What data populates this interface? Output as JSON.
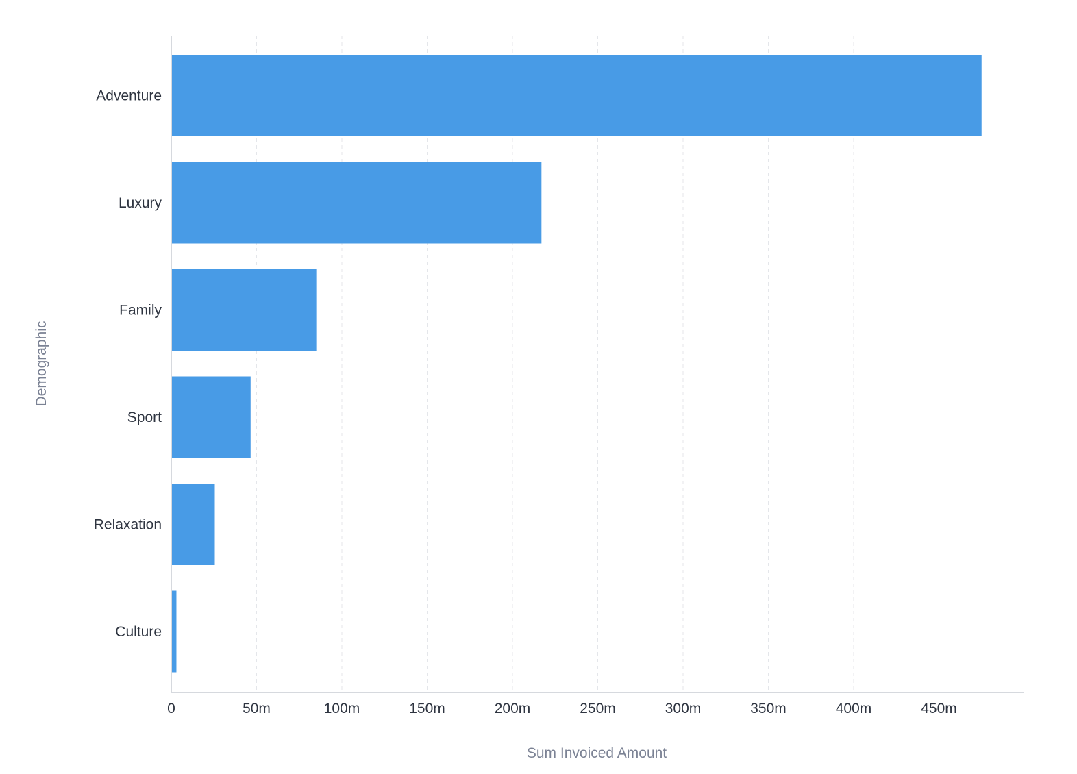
{
  "chart_data": {
    "type": "bar",
    "orientation": "horizontal",
    "categories": [
      "Adventure",
      "Luxury",
      "Family",
      "Sport",
      "Relaxation",
      "Culture"
    ],
    "values": [
      475000000,
      217000000,
      85000000,
      46500000,
      25500000,
      3000000
    ],
    "xlabel": "Sum Invoiced Amount",
    "ylabel": "Demographic",
    "xlim": [
      0,
      500000000
    ],
    "xticks": [
      0,
      50000000,
      100000000,
      150000000,
      200000000,
      250000000,
      300000000,
      350000000,
      400000000,
      450000000
    ],
    "xtick_labels": [
      "0",
      "50m",
      "100m",
      "150m",
      "200m",
      "250m",
      "300m",
      "350m",
      "400m",
      "450m"
    ],
    "grid": "vertical dashed",
    "legend": "none",
    "bar_color": "#489be6"
  }
}
